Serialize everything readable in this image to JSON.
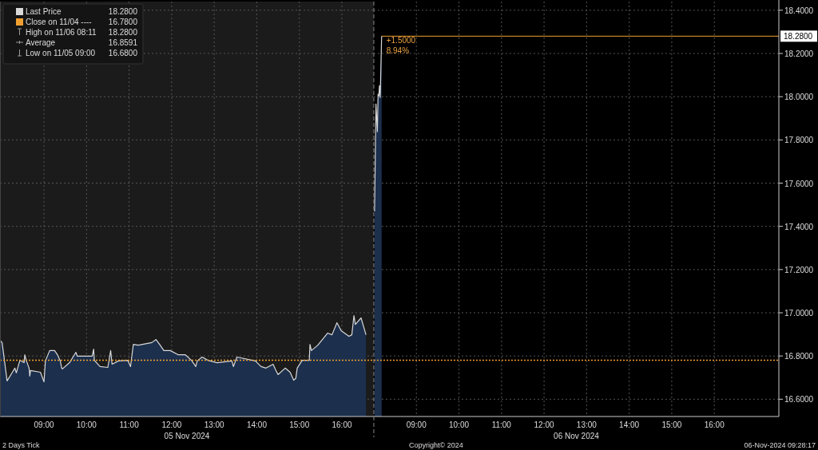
{
  "chart_data": [
    {
      "type": "area",
      "x": [
        "2024-11-05T07:58",
        "2024-11-05T08:01",
        "2024-11-05T08:08",
        "2024-11-05T08:15",
        "2024-11-05T08:19",
        "2024-11-05T08:21",
        "2024-11-05T08:26",
        "2024-11-05T08:32",
        "2024-11-05T08:33",
        "2024-11-05T08:35",
        "2024-11-05T08:39",
        "2024-11-05T08:40",
        "2024-11-05T08:41",
        "2024-11-05T08:55",
        "2024-11-05T09:00",
        "2024-11-05T09:02",
        "2024-11-05T09:08",
        "2024-11-05T09:15",
        "2024-11-05T09:19",
        "2024-11-05T09:23",
        "2024-11-05T09:25",
        "2024-11-05T09:26",
        "2024-11-05T09:36",
        "2024-11-05T09:43",
        "2024-11-05T09:45",
        "2024-11-05T09:47",
        "2024-11-05T10:08",
        "2024-11-05T10:10",
        "2024-11-05T10:11",
        "2024-11-05T10:19",
        "2024-11-05T10:30",
        "2024-11-05T10:34",
        "2024-11-05T10:36",
        "2024-11-05T10:45",
        "2024-11-05T10:58",
        "2024-11-05T11:02",
        "2024-11-05T11:06",
        "2024-11-05T11:13",
        "2024-11-05T11:32",
        "2024-11-05T11:38",
        "2024-11-05T11:43",
        "2024-11-05T11:49",
        "2024-11-05T11:58",
        "2024-11-05T12:09",
        "2024-11-05T12:19",
        "2024-11-05T12:28",
        "2024-11-05T12:34",
        "2024-11-05T12:36",
        "2024-11-05T12:43",
        "2024-11-05T12:51",
        "2024-11-05T13:04",
        "2024-11-05T13:25",
        "2024-11-05T13:27",
        "2024-11-05T13:32",
        "2024-11-05T13:58",
        "2024-11-05T14:06",
        "2024-11-05T14:13",
        "2024-11-05T14:23",
        "2024-11-05T14:26",
        "2024-11-05T14:30",
        "2024-11-05T14:40",
        "2024-11-05T14:47",
        "2024-11-05T14:52",
        "2024-11-05T14:55",
        "2024-11-05T14:57",
        "2024-11-05T15:04",
        "2024-11-05T15:14",
        "2024-11-05T15:15",
        "2024-11-05T15:17",
        "2024-11-05T15:26",
        "2024-11-05T15:40",
        "2024-11-05T15:46",
        "2024-11-05T15:53",
        "2024-11-05T15:59",
        "2024-11-05T16:10",
        "2024-11-05T16:14",
        "2024-11-05T16:17",
        "2024-11-05T16:19",
        "2024-11-05T16:27",
        "2024-11-05T16:34"
      ],
      "series": [
        {
          "name": "Last Price",
          "color": "#d8d8d8",
          "values": [
            16.873,
            16.862,
            16.685,
            16.722,
            16.744,
            16.722,
            16.78,
            16.769,
            16.806,
            16.78,
            16.744,
            16.707,
            16.733,
            16.725,
            16.68,
            16.777,
            16.825,
            16.825,
            16.806,
            16.777,
            16.744,
            16.74,
            16.769,
            16.806,
            16.817,
            16.799,
            16.799,
            16.832,
            16.78,
            16.751,
            16.747,
            16.825,
            16.762,
            16.777,
            16.78,
            16.751,
            16.854,
            16.85,
            16.862,
            16.876,
            16.854,
            16.825,
            16.825,
            16.806,
            16.806,
            16.78,
            16.751,
            16.777,
            16.795,
            16.78,
            16.769,
            16.777,
            16.751,
            16.795,
            16.777,
            16.751,
            16.744,
            16.762,
            16.74,
            16.714,
            16.744,
            16.725,
            16.688,
            16.696,
            16.744,
            16.78,
            16.78,
            16.854,
            16.825,
            16.85,
            16.906,
            16.898,
            16.954,
            16.917,
            16.891,
            16.898,
            16.987,
            16.946,
            16.976,
            16.898
          ]
        }
      ],
      "xlim": [
        "2024-11-05T07:58",
        "2024-11-05T16:45"
      ],
      "ylim": [
        16.52,
        18.44
      ],
      "tick_labels": "x",
      "xticks": [
        {
          "value": "2024-11-05T09:00",
          "label": "09:00"
        },
        {
          "value": "2024-11-05T10:00",
          "label": "10:00"
        },
        {
          "value": "2024-11-05T11:00",
          "label": "11:00"
        },
        {
          "value": "2024-11-05T12:00",
          "label": "12:00"
        },
        {
          "value": "2024-11-05T13:00",
          "label": "13:00"
        },
        {
          "value": "2024-11-05T14:00",
          "label": "14:00"
        },
        {
          "value": "2024-11-05T15:00",
          "label": "15:00"
        },
        {
          "value": "2024-11-05T16:00",
          "label": "16:00"
        }
      ],
      "yticks": [
        16.6,
        16.8,
        17,
        17.2,
        17.4,
        17.6,
        17.8,
        18,
        18.2,
        18.4
      ],
      "grid": true,
      "legend": "top left",
      "ref_lines": [
        {
          "axis": "y",
          "value": 16.78,
          "label": "Close on 11/04 ----",
          "color": "#f0a030",
          "line_style": "dotted"
        }
      ],
      "annotations": [
        "18.2800",
        "16.7800",
        "High on 11/06 08:11",
        "18.2800",
        "Average",
        "16.8591",
        "Low on 11/05 09:00",
        "16.6800",
        "05 Nov 2024",
        "2 Days  Tick"
      ]
    },
    {
      "type": "area",
      "x": [
        "2024-11-06T08:01",
        "2024-11-06T08:02",
        "2024-11-06T08:03",
        "2024-11-06T08:05",
        "2024-11-06T08:06",
        "2024-11-06T08:07",
        "2024-11-06T08:08",
        "2024-11-06T08:09",
        "2024-11-06T08:11"
      ],
      "series": [
        {
          "color": "#d8d8d8",
          "values": [
            17.469,
            17.709,
            17.966,
            17.838,
            18.011,
            18.003,
            18.051,
            17.996,
            18.28
          ]
        }
      ],
      "xlim": [
        "2024-11-06T08:00",
        "2024-11-06T17:31"
      ],
      "ylim": [
        16.52,
        18.44
      ],
      "xticks": [
        {
          "value": "2024-11-06T09:00",
          "label": "09:00"
        },
        {
          "value": "2024-11-06T10:00",
          "label": "10:00"
        },
        {
          "value": "2024-11-06T11:00",
          "label": "11:00"
        },
        {
          "value": "2024-11-06T12:00",
          "label": "12:00"
        },
        {
          "value": "2024-11-06T13:00",
          "label": "13:00"
        },
        {
          "value": "2024-11-06T14:00",
          "label": "14:00"
        },
        {
          "value": "2024-11-06T15:00",
          "label": "15:00"
        },
        {
          "value": "2024-11-06T16:00",
          "label": "16:00"
        }
      ],
      "yticks": [
        {
          "value": 16.6,
          "label": "16.6000"
        },
        {
          "value": 16.8,
          "label": "16.8000"
        },
        {
          "value": 17,
          "label": "17.0000"
        },
        {
          "value": 17.2,
          "label": "17.2000"
        },
        {
          "value": 17.4,
          "label": "17.4000"
        },
        {
          "value": 17.6,
          "label": "17.6000"
        },
        {
          "value": 17.8,
          "label": "17.8000"
        },
        {
          "value": 18,
          "label": "18.0000"
        },
        {
          "value": 18.2,
          "label": "18.2000"
        },
        {
          "value": 18.4,
          "label": "18.4000"
        }
      ],
      "grid": true,
      "ref_lines": [
        {
          "axis": "y",
          "value": 16.78,
          "color": "#f0a030",
          "line_style": "dotted"
        },
        {
          "axis": "y",
          "value": 18.28,
          "label": "18.2800",
          "color": "#f0a030",
          "line_style": "solid"
        }
      ],
      "annotations": [
        "+1.5000",
        "8.94%",
        "06 Nov 2024",
        "Copyright© 2024",
        "06-Nov-2024 09:28:17"
      ]
    }
  ]
}
